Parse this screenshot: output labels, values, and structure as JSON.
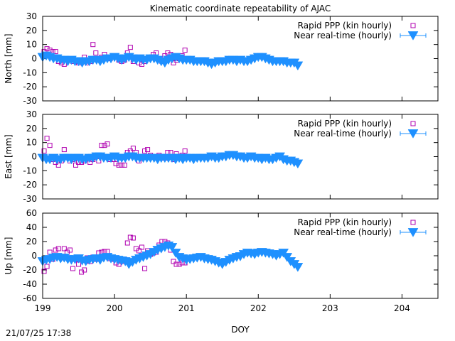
{
  "timestamp": "21/07/25 17:38",
  "chart_data": [
    {
      "type": "scatter",
      "title": "Kinematic coordinate repeatability of AJAC",
      "xlabel": "",
      "ylabel": "North [mm]",
      "xlim": [
        199,
        204.5
      ],
      "ylim": [
        -30,
        30
      ],
      "yticks": [
        "30",
        "20",
        "10",
        "0",
        "-10",
        "-20",
        "-30"
      ],
      "xticks": [],
      "legend_position": "top-right",
      "series": [
        {
          "name": "Rapid PPP (kin hourly)",
          "color": "#b000b0",
          "marker": "open-square",
          "x": [
            199.02,
            199.06,
            199.1,
            199.14,
            199.18,
            199.22,
            199.26,
            199.3,
            199.34,
            199.38,
            199.42,
            199.46,
            199.5,
            199.54,
            199.58,
            199.62,
            199.66,
            199.7,
            199.74,
            199.78,
            199.82,
            199.86,
            199.9,
            199.94,
            199.98,
            200.02,
            200.06,
            200.1,
            200.14,
            200.18,
            200.22,
            200.26,
            200.3,
            200.34,
            200.38,
            200.42,
            200.46,
            200.5,
            200.54,
            200.58,
            200.62,
            200.66,
            200.7,
            200.74,
            200.78,
            200.82,
            200.86,
            200.9,
            200.94,
            200.98
          ],
          "y": [
            5,
            7,
            6,
            5,
            5,
            -2,
            -3,
            -4,
            0,
            -1,
            -2,
            -2,
            -3,
            -1,
            1,
            -3,
            -2,
            10,
            4,
            -1,
            1,
            3,
            1,
            0,
            2,
            1,
            -1,
            -2,
            -1,
            4,
            8,
            -2,
            0,
            -3,
            -4,
            -2,
            0,
            1,
            3,
            4,
            0,
            -2,
            2,
            4,
            3,
            -3,
            -1,
            0,
            2,
            6
          ]
        },
        {
          "name": "Near real-time (hourly)",
          "color": "#1e90ff",
          "marker": "filled-triangle-down",
          "x": [
            199.0,
            199.05,
            199.1,
            199.15,
            199.2,
            199.25,
            199.3,
            199.35,
            199.4,
            199.45,
            199.5,
            199.55,
            199.6,
            199.65,
            199.7,
            199.75,
            199.8,
            199.85,
            199.9,
            199.95,
            200.0,
            200.05,
            200.1,
            200.15,
            200.2,
            200.25,
            200.3,
            200.35,
            200.4,
            200.45,
            200.5,
            200.55,
            200.6,
            200.65,
            200.7,
            200.75,
            200.8,
            200.85,
            200.9,
            200.95,
            201.0,
            201.05,
            201.1,
            201.15,
            201.2,
            201.25,
            201.3,
            201.35,
            201.4,
            201.45,
            201.5,
            201.55,
            201.6,
            201.65,
            201.7,
            201.75,
            201.8,
            201.85,
            201.9,
            201.95,
            202.0,
            202.05,
            202.1,
            202.15,
            202.2,
            202.25,
            202.3,
            202.35,
            202.4,
            202.45,
            202.5,
            202.55
          ],
          "y": [
            1,
            2,
            1,
            0,
            0,
            -1,
            -1,
            -2,
            -1,
            -2,
            -2,
            -3,
            -2,
            -2,
            -1,
            -1,
            -2,
            -1,
            0,
            0,
            1,
            0,
            -1,
            0,
            1,
            0,
            -1,
            0,
            -1,
            -1,
            0,
            0,
            -1,
            -2,
            -3,
            -1,
            0,
            1,
            0,
            -1,
            -1,
            -1,
            -2,
            -2,
            -2,
            -2,
            -3,
            -4,
            -3,
            -2,
            -2,
            -2,
            -1,
            -1,
            -2,
            -1,
            -2,
            -2,
            -1,
            0,
            1,
            1,
            0,
            -1,
            -2,
            -2,
            -2,
            -2,
            -3,
            -3,
            -3,
            -5
          ]
        }
      ]
    },
    {
      "type": "scatter",
      "xlabel": "",
      "ylabel": "East [mm]",
      "xlim": [
        199,
        204.5
      ],
      "ylim": [
        -30,
        30
      ],
      "yticks": [
        "30",
        "20",
        "10",
        "0",
        "-10",
        "-20",
        "-30"
      ],
      "xticks": [],
      "legend_position": "top-right",
      "series": [
        {
          "name": "Rapid PPP (kin hourly)",
          "color": "#b000b0",
          "marker": "open-square",
          "x": [
            199.02,
            199.06,
            199.1,
            199.14,
            199.18,
            199.22,
            199.26,
            199.3,
            199.34,
            199.38,
            199.42,
            199.46,
            199.5,
            199.54,
            199.58,
            199.62,
            199.66,
            199.7,
            199.74,
            199.78,
            199.82,
            199.86,
            199.9,
            199.94,
            199.98,
            200.02,
            200.06,
            200.1,
            200.14,
            200.18,
            200.22,
            200.26,
            200.3,
            200.34,
            200.38,
            200.42,
            200.46,
            200.5,
            200.54,
            200.58,
            200.62,
            200.66,
            200.7,
            200.74,
            200.78,
            200.82,
            200.86,
            200.9,
            200.94,
            200.98
          ],
          "y": [
            4,
            13,
            8,
            -2,
            -4,
            -6,
            -3,
            5,
            0,
            -3,
            -2,
            -6,
            -4,
            -4,
            -3,
            0,
            -4,
            -2,
            1,
            -3,
            8,
            8,
            9,
            -2,
            -2,
            -5,
            -6,
            -6,
            -6,
            3,
            4,
            6,
            3,
            -3,
            -1,
            4,
            5,
            1,
            0,
            0,
            1,
            -1,
            -1,
            3,
            3,
            -2,
            2,
            0,
            1,
            4
          ]
        },
        {
          "name": "Near real-time (hourly)",
          "color": "#1e90ff",
          "marker": "filled-triangle-down",
          "x": [
            199.0,
            199.05,
            199.1,
            199.15,
            199.2,
            199.25,
            199.3,
            199.35,
            199.4,
            199.45,
            199.5,
            199.55,
            199.6,
            199.65,
            199.7,
            199.75,
            199.8,
            199.85,
            199.9,
            199.95,
            200.0,
            200.05,
            200.1,
            200.15,
            200.2,
            200.25,
            200.3,
            200.35,
            200.4,
            200.45,
            200.5,
            200.55,
            200.6,
            200.65,
            200.7,
            200.75,
            200.8,
            200.85,
            200.9,
            200.95,
            201.0,
            201.05,
            201.1,
            201.15,
            201.2,
            201.25,
            201.3,
            201.35,
            201.4,
            201.45,
            201.5,
            201.55,
            201.6,
            201.65,
            201.7,
            201.75,
            201.8,
            201.85,
            201.9,
            201.95,
            202.0,
            202.05,
            202.1,
            202.15,
            202.2,
            202.25,
            202.3,
            202.35,
            202.4,
            202.45,
            202.5,
            202.55
          ],
          "y": [
            -1,
            -2,
            -2,
            -1,
            -2,
            -2,
            -1,
            -1,
            -2,
            -1,
            -1,
            -2,
            -2,
            -1,
            -1,
            0,
            0,
            -1,
            -1,
            -1,
            0,
            -1,
            -1,
            -1,
            0,
            0,
            -1,
            -1,
            -1,
            -1,
            -1,
            -1,
            -2,
            -1,
            -1,
            -1,
            -1,
            -2,
            -1,
            -2,
            -1,
            -1,
            -2,
            -1,
            -1,
            -1,
            -1,
            0,
            -1,
            -1,
            0,
            0,
            1,
            1,
            0,
            0,
            -1,
            -1,
            0,
            -1,
            -1,
            -2,
            -1,
            -2,
            -2,
            -1,
            0,
            -2,
            -3,
            -3,
            -4,
            -5
          ]
        }
      ]
    },
    {
      "type": "scatter",
      "xlabel": "DOY",
      "ylabel": "Up [mm]",
      "xlim": [
        199,
        204.5
      ],
      "ylim": [
        -60,
        60
      ],
      "yticks": [
        "60",
        "40",
        "20",
        "0",
        "-20",
        "-40",
        "-60"
      ],
      "xticks": [
        "199",
        "200",
        "201",
        "202",
        "203",
        "204"
      ],
      "legend_position": "top-right",
      "series": [
        {
          "name": "Rapid PPP (kin hourly)",
          "color": "#b000b0",
          "marker": "open-square",
          "x": [
            199.02,
            199.06,
            199.1,
            199.14,
            199.18,
            199.22,
            199.26,
            199.3,
            199.34,
            199.38,
            199.42,
            199.46,
            199.5,
            199.54,
            199.58,
            199.62,
            199.66,
            199.7,
            199.74,
            199.78,
            199.82,
            199.86,
            199.9,
            199.94,
            199.98,
            200.02,
            200.06,
            200.1,
            200.14,
            200.18,
            200.22,
            200.26,
            200.3,
            200.34,
            200.38,
            200.42,
            200.46,
            200.5,
            200.54,
            200.58,
            200.62,
            200.66,
            200.7,
            200.74,
            200.78,
            200.82,
            200.86,
            200.9,
            200.94,
            200.98
          ],
          "y": [
            -22,
            -15,
            5,
            -5,
            8,
            10,
            -3,
            10,
            5,
            8,
            -18,
            -5,
            -12,
            -23,
            -20,
            -3,
            -8,
            -2,
            -5,
            4,
            5,
            6,
            6,
            -4,
            -5,
            -10,
            -12,
            -8,
            -5,
            18,
            26,
            25,
            10,
            7,
            12,
            -18,
            7,
            2,
            4,
            5,
            15,
            20,
            20,
            18,
            8,
            -8,
            -12,
            -12,
            -10,
            -10
          ]
        },
        {
          "name": "Near real-time (hourly)",
          "color": "#1e90ff",
          "marker": "filled-triangle-down",
          "x": [
            199.0,
            199.05,
            199.1,
            199.15,
            199.2,
            199.25,
            199.3,
            199.35,
            199.4,
            199.45,
            199.5,
            199.55,
            199.6,
            199.65,
            199.7,
            199.75,
            199.8,
            199.85,
            199.9,
            199.95,
            200.0,
            200.05,
            200.1,
            200.15,
            200.2,
            200.25,
            200.3,
            200.35,
            200.4,
            200.45,
            200.5,
            200.55,
            200.6,
            200.65,
            200.7,
            200.75,
            200.8,
            200.85,
            200.9,
            200.95,
            201.0,
            201.05,
            201.1,
            201.15,
            201.2,
            201.25,
            201.3,
            201.35,
            201.4,
            201.45,
            201.5,
            201.55,
            201.6,
            201.65,
            201.7,
            201.75,
            201.8,
            201.85,
            201.9,
            201.95,
            202.0,
            202.05,
            202.1,
            202.15,
            202.2,
            202.25,
            202.3,
            202.35,
            202.4,
            202.45,
            202.5,
            202.55
          ],
          "y": [
            -8,
            -6,
            -5,
            -3,
            -2,
            -4,
            -3,
            -5,
            -6,
            -5,
            -4,
            -7,
            -8,
            -6,
            -5,
            -4,
            -6,
            -3,
            -2,
            -4,
            -5,
            -6,
            -7,
            -8,
            -12,
            -9,
            -6,
            -4,
            -2,
            0,
            2,
            5,
            8,
            10,
            12,
            14,
            12,
            4,
            -2,
            -4,
            -6,
            -5,
            -4,
            -3,
            -2,
            -4,
            -5,
            -6,
            -8,
            -10,
            -12,
            -9,
            -6,
            -4,
            -2,
            -1,
            2,
            4,
            3,
            2,
            4,
            5,
            4,
            3,
            2,
            0,
            2,
            4,
            -2,
            -8,
            -12,
            -16
          ]
        }
      ]
    }
  ]
}
